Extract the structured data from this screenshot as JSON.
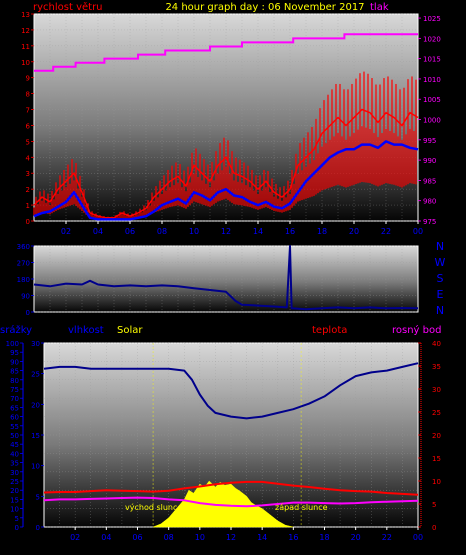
{
  "chart_data": [
    {
      "type": "line",
      "title": "24 hour graph day : 06 November 2017",
      "left_label": "rychlost větru",
      "right_label": "tlak",
      "x_ticks": [
        "02",
        "04",
        "06",
        "08",
        "10",
        "12",
        "14",
        "16",
        "18",
        "20",
        "22",
        "00"
      ],
      "y_left_ticks": [
        "0",
        "1",
        "2",
        "3",
        "4",
        "5",
        "6",
        "7",
        "8",
        "9",
        "10",
        "11",
        "12",
        "13"
      ],
      "y_left_range": [
        0,
        13
      ],
      "y_right_ticks": [
        "975",
        "980",
        "985",
        "990",
        "995",
        "1000",
        "1005",
        "1010",
        "1015",
        "1020",
        "1025"
      ],
      "y_right_range": [
        975,
        1026
      ],
      "grid": true,
      "series": [
        {
          "color": "#ff00ff",
          "axis": "right",
          "style": "step",
          "points": [
            [
              0,
              1012
            ],
            [
              1.2,
              1013
            ],
            [
              2.6,
              1014
            ],
            [
              4.4,
              1015
            ],
            [
              6.5,
              1016
            ],
            [
              8.2,
              1017
            ],
            [
              11,
              1018
            ],
            [
              13,
              1019
            ],
            [
              16.2,
              1020
            ],
            [
              19.4,
              1021
            ],
            [
              23.2,
              1021
            ],
            [
              24,
              1021
            ]
          ]
        },
        {
          "color": "#ff0000",
          "axis": "left",
          "style": "gust",
          "points": [
            [
              0,
              1.0
            ],
            [
              0.5,
              1.5
            ],
            [
              1,
              1.2
            ],
            [
              1.5,
              2.0
            ],
            [
              2,
              2.5
            ],
            [
              2.5,
              3.0
            ],
            [
              3,
              1.8
            ],
            [
              3.5,
              0.5
            ],
            [
              4,
              0.3
            ],
            [
              4.5,
              0.2
            ],
            [
              5,
              0.2
            ],
            [
              5.5,
              0.5
            ],
            [
              6,
              0.3
            ],
            [
              6.5,
              0.5
            ],
            [
              7,
              0.8
            ],
            [
              7.5,
              1.5
            ],
            [
              8,
              2.0
            ],
            [
              8.5,
              2.5
            ],
            [
              9,
              2.8
            ],
            [
              9.5,
              2.2
            ],
            [
              10,
              3.5
            ],
            [
              10.5,
              3.0
            ],
            [
              11,
              2.5
            ],
            [
              11.5,
              3.5
            ],
            [
              12,
              4.0
            ],
            [
              12.5,
              3.0
            ],
            [
              13,
              2.8
            ],
            [
              13.5,
              2.5
            ],
            [
              14,
              2.0
            ],
            [
              14.5,
              2.5
            ],
            [
              15,
              1.8
            ],
            [
              15.5,
              1.5
            ],
            [
              16,
              2.0
            ],
            [
              16.5,
              3.5
            ],
            [
              17,
              4.0
            ],
            [
              17.5,
              4.5
            ],
            [
              18,
              5.5
            ],
            [
              18.5,
              6.0
            ],
            [
              19,
              6.5
            ],
            [
              19.5,
              6.0
            ],
            [
              20,
              6.5
            ],
            [
              20.5,
              7.0
            ],
            [
              21,
              6.8
            ],
            [
              21.5,
              6.2
            ],
            [
              22,
              6.8
            ],
            [
              22.5,
              6.5
            ],
            [
              23,
              6.0
            ],
            [
              23.5,
              6.8
            ],
            [
              24,
              6.5
            ]
          ]
        },
        {
          "color": "#0000ff",
          "axis": "left",
          "style": "line",
          "points": [
            [
              0,
              0.3
            ],
            [
              0.5,
              0.5
            ],
            [
              1,
              0.6
            ],
            [
              1.5,
              0.9
            ],
            [
              2,
              1.2
            ],
            [
              2.5,
              1.8
            ],
            [
              3,
              1.0
            ],
            [
              3.5,
              0.2
            ],
            [
              4,
              0.1
            ],
            [
              4.5,
              0.1
            ],
            [
              5,
              0.1
            ],
            [
              5.5,
              0.1
            ],
            [
              6,
              0.1
            ],
            [
              6.5,
              0.2
            ],
            [
              7,
              0.3
            ],
            [
              7.5,
              0.6
            ],
            [
              8,
              1.0
            ],
            [
              8.5,
              1.2
            ],
            [
              9,
              1.4
            ],
            [
              9.5,
              1.1
            ],
            [
              10,
              1.8
            ],
            [
              10.5,
              1.6
            ],
            [
              11,
              1.3
            ],
            [
              11.5,
              1.8
            ],
            [
              12,
              2.0
            ],
            [
              12.5,
              1.6
            ],
            [
              13,
              1.5
            ],
            [
              13.5,
              1.2
            ],
            [
              14,
              1.0
            ],
            [
              14.5,
              1.2
            ],
            [
              15,
              0.9
            ],
            [
              15.5,
              0.8
            ],
            [
              16,
              1.1
            ],
            [
              16.5,
              1.8
            ],
            [
              17,
              2.5
            ],
            [
              17.5,
              3.0
            ],
            [
              18,
              3.5
            ],
            [
              18.5,
              4.0
            ],
            [
              19,
              4.3
            ],
            [
              19.5,
              4.5
            ],
            [
              20,
              4.5
            ],
            [
              20.5,
              4.8
            ],
            [
              21,
              4.8
            ],
            [
              21.5,
              4.6
            ],
            [
              22,
              5.0
            ],
            [
              22.5,
              4.8
            ],
            [
              23,
              4.8
            ],
            [
              23.5,
              4.6
            ],
            [
              24,
              4.5
            ]
          ]
        }
      ]
    },
    {
      "type": "line",
      "y_ticks": [
        "0",
        "90",
        "180",
        "270",
        "360"
      ],
      "y_range": [
        0,
        360
      ],
      "right_labels": [
        "N",
        "W",
        "S",
        "E",
        "N"
      ],
      "grid": true,
      "series": [
        {
          "color": "#00008b",
          "style": "line",
          "points": [
            [
              0,
              150
            ],
            [
              1,
              140
            ],
            [
              2,
              155
            ],
            [
              3,
              150
            ],
            [
              3.5,
              170
            ],
            [
              4,
              150
            ],
            [
              5,
              140
            ],
            [
              6,
              145
            ],
            [
              7,
              140
            ],
            [
              8,
              145
            ],
            [
              9,
              140
            ],
            [
              10,
              130
            ],
            [
              11,
              120
            ],
            [
              12,
              110
            ],
            [
              12.6,
              60
            ],
            [
              13,
              40
            ],
            [
              14,
              35
            ],
            [
              15,
              30
            ],
            [
              15.8,
              25
            ],
            [
              16,
              360
            ],
            [
              16.1,
              20
            ],
            [
              17,
              15
            ],
            [
              18,
              20
            ],
            [
              19,
              25
            ],
            [
              20,
              20
            ],
            [
              21,
              25
            ],
            [
              22,
              20
            ],
            [
              23,
              22
            ],
            [
              24,
              20
            ]
          ]
        }
      ]
    },
    {
      "type": "line",
      "labels": {
        "srazky": "srážky",
        "vlhkost": "vlhkost",
        "solar": "Solar",
        "teplota": "teplota",
        "rosny_bod": "rosný bod"
      },
      "x_ticks": [
        "02",
        "04",
        "06",
        "08",
        "10",
        "12",
        "14",
        "16",
        "18",
        "20",
        "22",
        "00"
      ],
      "y_left_ticks": [
        "0",
        "5",
        "10",
        "15",
        "20",
        "25",
        "30",
        "35",
        "40",
        "45",
        "50",
        "55",
        "60",
        "65",
        "70",
        "75",
        "80",
        "85",
        "90",
        "95",
        "100"
      ],
      "y_left_range": [
        0,
        100
      ],
      "y_mid_ticks": [
        "0",
        "5",
        "10",
        "15",
        "20",
        "25",
        "30"
      ],
      "y_mid_range": [
        0,
        30
      ],
      "y_right_ticks": [
        "0",
        "5",
        "10",
        "15",
        "20",
        "25",
        "30",
        "35",
        "40"
      ],
      "y_right_range": [
        0,
        40
      ],
      "grid": true,
      "annotations": [
        "východ slunce",
        "západ slunce"
      ],
      "sunrise_hour": 7.0,
      "sunset_hour": 16.5,
      "series": [
        {
          "color": "#00008b",
          "axis": "left",
          "style": "line",
          "points": [
            [
              0,
              86
            ],
            [
              1,
              87
            ],
            [
              2,
              87
            ],
            [
              3,
              86
            ],
            [
              4,
              86
            ],
            [
              5,
              86
            ],
            [
              6,
              86
            ],
            [
              7,
              86
            ],
            [
              8,
              86
            ],
            [
              9,
              85
            ],
            [
              9.5,
              80
            ],
            [
              10,
              72
            ],
            [
              10.5,
              66
            ],
            [
              11,
              62
            ],
            [
              12,
              60
            ],
            [
              13,
              59
            ],
            [
              14,
              60
            ],
            [
              15,
              62
            ],
            [
              16,
              64
            ],
            [
              17,
              67
            ],
            [
              18,
              71
            ],
            [
              19,
              77
            ],
            [
              20,
              82
            ],
            [
              21,
              84
            ],
            [
              22,
              85
            ],
            [
              23,
              87
            ],
            [
              24,
              89
            ]
          ]
        },
        {
          "color": "#ff0000",
          "axis": "right",
          "style": "line",
          "points": [
            [
              0,
              7.5
            ],
            [
              1,
              7.6
            ],
            [
              2,
              7.6
            ],
            [
              3,
              7.8
            ],
            [
              4,
              8.0
            ],
            [
              5,
              7.9
            ],
            [
              6,
              7.8
            ],
            [
              7,
              7.7
            ],
            [
              8,
              7.9
            ],
            [
              9,
              8.4
            ],
            [
              10,
              8.8
            ],
            [
              11,
              9.3
            ],
            [
              12,
              9.6
            ],
            [
              13,
              9.8
            ],
            [
              14,
              9.8
            ],
            [
              15,
              9.4
            ],
            [
              16,
              9.0
            ],
            [
              17,
              8.7
            ],
            [
              18,
              8.3
            ],
            [
              19,
              8.0
            ],
            [
              20,
              7.8
            ],
            [
              21,
              7.7
            ],
            [
              22,
              7.4
            ],
            [
              23,
              7.2
            ],
            [
              24,
              7.0
            ]
          ]
        },
        {
          "color": "#ff00ff",
          "axis": "right",
          "style": "line",
          "points": [
            [
              0,
              5.8
            ],
            [
              1,
              6.0
            ],
            [
              2,
              6.0
            ],
            [
              3,
              6.1
            ],
            [
              4,
              6.2
            ],
            [
              5,
              6.3
            ],
            [
              6,
              6.4
            ],
            [
              7,
              6.3
            ],
            [
              8,
              6.0
            ],
            [
              9,
              5.8
            ],
            [
              10,
              5.2
            ],
            [
              11,
              4.8
            ],
            [
              12,
              4.6
            ],
            [
              13,
              4.5
            ],
            [
              14,
              4.7
            ],
            [
              15,
              5.0
            ],
            [
              16,
              5.3
            ],
            [
              17,
              5.3
            ],
            [
              18,
              5.2
            ],
            [
              19,
              5.1
            ],
            [
              20,
              5.2
            ],
            [
              21,
              5.4
            ],
            [
              22,
              5.5
            ],
            [
              23,
              5.6
            ],
            [
              24,
              5.7
            ]
          ]
        },
        {
          "color": "#ffff00",
          "axis": "mid",
          "style": "area",
          "points": [
            [
              7,
              0
            ],
            [
              7.5,
              0.5
            ],
            [
              8,
              1.5
            ],
            [
              8.5,
              3
            ],
            [
              9,
              4.5
            ],
            [
              9.3,
              6
            ],
            [
              9.6,
              5.5
            ],
            [
              10,
              7
            ],
            [
              10.3,
              6.5
            ],
            [
              10.6,
              7.5
            ],
            [
              11,
              6.5
            ],
            [
              11.3,
              7.3
            ],
            [
              11.6,
              6.8
            ],
            [
              12,
              7
            ],
            [
              12.3,
              6.3
            ],
            [
              12.6,
              5.8
            ],
            [
              13,
              5
            ],
            [
              13.3,
              4
            ],
            [
              13.6,
              3.5
            ],
            [
              14,
              3
            ],
            [
              14.5,
              2
            ],
            [
              15,
              1
            ],
            [
              15.5,
              0.3
            ],
            [
              16,
              0
            ]
          ]
        }
      ]
    }
  ]
}
